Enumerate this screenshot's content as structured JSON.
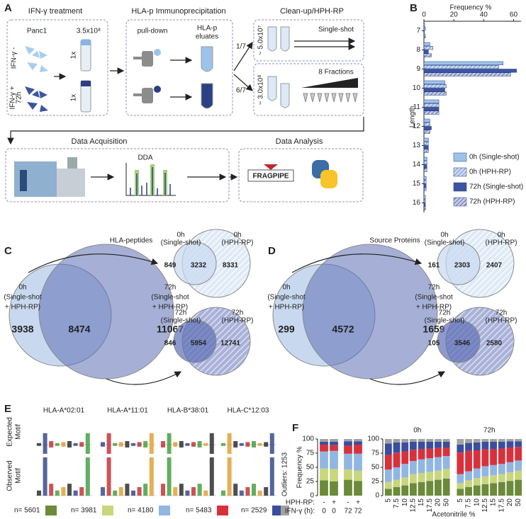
{
  "panel_a": {
    "label": "A",
    "ifn_treatment": "IFN-γ treatment",
    "cell_line": "Panc1",
    "cell_count": "3.5x10⁸",
    "ifn_minus": "IFN-γ -",
    "ifn_plus": "IFN-γ +",
    "ifn_time": "72h",
    "replicate_1": "1x",
    "replicate_2": "1x",
    "ip_title": "HLA-p Immunoprecipitation",
    "pulldown": "pull-down",
    "eluates": [
      "HLA-p",
      "eluates"
    ],
    "split_1": "1/7",
    "split_2": "6/7",
    "cleanup_title": "Clean-up/HPH-RP",
    "amount_1": "~ 5.0x10⁷",
    "amount_2": "~ 3.0x10⁸",
    "single_shot": "Single-shot",
    "fractions": "8 Fractions",
    "acq_title": "Data Acquisition",
    "dda": "DDA",
    "analysis_title": "Data Analysis",
    "fragpipe": "FRAGPIPE"
  },
  "panel_c": {
    "label": "C",
    "title": "HLA-peptides",
    "big": {
      "left_label": [
        "0h",
        "(Single-shot",
        "+ HPH-RP)"
      ],
      "right_label": [
        "72h",
        "(Single-shot",
        "+ HPH-RP)"
      ],
      "left": 3938,
      "both": 8474,
      "right": 11067
    },
    "small": [
      {
        "left_label": [
          "0h",
          "(Single-shot)"
        ],
        "right_label": [
          "0h",
          "(HPH-RP)"
        ],
        "left": 849,
        "both": 3232,
        "right": 8331
      },
      {
        "left_label": [
          "72h",
          "(Single-shot)"
        ],
        "right_label": [
          "72h",
          "(HPH-RP)"
        ],
        "left": 846,
        "both": 5954,
        "right": 12741
      }
    ]
  },
  "panel_d": {
    "label": "D",
    "title": "Source Proteins",
    "big": {
      "left_label": [
        "0h",
        "(Single-shot",
        "+ HPH-RP)"
      ],
      "right_label": [
        "72h",
        "(Single-shot",
        "+ HPH-RP)"
      ],
      "left": 299,
      "both": 4572,
      "right": 1659
    },
    "small": [
      {
        "left_label": [
          "0h",
          "(Single-shot)"
        ],
        "right_label": [
          "0h",
          "(HPH-RP)"
        ],
        "left": 161,
        "both": 2303,
        "right": 2407
      },
      {
        "left_label": [
          "72h",
          "(Single-shot)"
        ],
        "right_label": [
          "72h",
          "(HPH-RP)"
        ],
        "left": 105,
        "both": 3546,
        "right": 2580
      }
    ]
  },
  "panel_e": {
    "label": "E",
    "alleles": [
      "HLA-A*02:01",
      "HLA-A*11:01",
      "HLA-B*38:01",
      "HLA-C*12:03"
    ],
    "expected": [
      "Expected",
      "Motif"
    ],
    "observed": [
      "Observed",
      "Motif"
    ],
    "counts": [
      "n= 5601",
      "n= 3981",
      "n= 4180",
      "n= 5483",
      "n= 2529"
    ],
    "count_colors": [
      "#6b8a3a",
      "#c9d67c",
      "#92b6e2",
      "#d9313c",
      "#3b4e9c"
    ],
    "outliers": "Outliers: 1253",
    "outlier_color": "#a3a3a3"
  },
  "chart_data": [
    {
      "type": "hbar",
      "panel_label": "B",
      "xlabel": "Frequency %",
      "ylabel": "Length",
      "categories": [
        "7",
        "8",
        "9",
        "10",
        "11",
        "12",
        "13",
        "14",
        "15",
        "16"
      ],
      "xlim": [
        0,
        65
      ],
      "xticks": [
        0,
        20,
        40,
        60
      ],
      "series": [
        {
          "name": "0h (Single-shot)",
          "color": "#9dc3ea",
          "hatched": false,
          "values": [
            0.5,
            4,
            53,
            14,
            10,
            4,
            3,
            2,
            1.5,
            1
          ]
        },
        {
          "name": "0h (HPH-RP)",
          "color": "#5b84c4",
          "hatched": true,
          "values": [
            1,
            6,
            50,
            15,
            10,
            4,
            3,
            2,
            1.5,
            1
          ]
        },
        {
          "name": "72h (Single-shot)",
          "color": "#3d55a0",
          "hatched": false,
          "values": [
            0.3,
            3,
            62,
            14,
            10,
            5,
            3,
            2,
            1.5,
            1
          ]
        },
        {
          "name": "72h (HPH-RP)",
          "color": "#3d55a0",
          "hatched": true,
          "values": [
            1,
            5,
            58,
            15,
            10,
            4,
            3,
            2,
            1.5,
            1
          ]
        }
      ]
    },
    {
      "type": "stacked_bar",
      "panel_label": "F",
      "ylabel": "Frequency %",
      "ylim": [
        0,
        100
      ],
      "yticks": [
        0,
        25,
        50,
        75,
        100
      ],
      "row_labels": [
        "HPH-RP:",
        "IFN-γ (h):"
      ],
      "hph_rp": [
        "-",
        "+",
        "-",
        "+"
      ],
      "ifn": [
        "0",
        "0",
        "72",
        "72"
      ],
      "series": [
        {
          "color": "#6b8a3a",
          "values": [
            27,
            25,
            28,
            26
          ]
        },
        {
          "color": "#c9d67c",
          "values": [
            21,
            22,
            18,
            18
          ]
        },
        {
          "color": "#92b6e2",
          "values": [
            30,
            32,
            28,
            30
          ]
        },
        {
          "color": "#d9313c",
          "values": [
            12,
            10,
            14,
            16
          ]
        },
        {
          "color": "#3b4e9c",
          "values": [
            5,
            6,
            8,
            6
          ]
        },
        {
          "color": "#a3a3a3",
          "values": [
            5,
            5,
            4,
            4
          ]
        }
      ]
    },
    {
      "type": "stacked_bar",
      "xlabel": "Acetonitrile %",
      "ylim": [
        0,
        100
      ],
      "yticks": [
        0,
        25,
        50,
        75,
        100
      ],
      "groups": [
        "0h",
        "72h"
      ],
      "categories": [
        "5",
        "7.5",
        "10",
        "12.5",
        "15",
        "17.5",
        "20",
        "50",
        "5",
        "7.5",
        "10",
        "12.5",
        "15",
        "17.5",
        "20",
        "50"
      ],
      "series": [
        {
          "color": "#6b8a3a",
          "values": [
            12,
            15,
            18,
            22,
            24,
            26,
            28,
            30,
            12,
            15,
            18,
            20,
            22,
            24,
            26,
            28
          ]
        },
        {
          "color": "#c9d67c",
          "values": [
            12,
            13,
            14,
            16,
            16,
            16,
            16,
            17,
            10,
            12,
            13,
            14,
            14,
            14,
            15,
            16
          ]
        },
        {
          "color": "#92b6e2",
          "values": [
            22,
            22,
            24,
            23,
            24,
            24,
            24,
            23,
            16,
            16,
            17,
            18,
            18,
            18,
            18,
            18
          ]
        },
        {
          "color": "#d9313c",
          "values": [
            26,
            26,
            22,
            20,
            18,
            17,
            16,
            15,
            38,
            36,
            32,
            30,
            28,
            27,
            26,
            24
          ]
        },
        {
          "color": "#3b4e9c",
          "values": [
            20,
            18,
            16,
            14,
            13,
            12,
            11,
            10,
            14,
            14,
            14,
            13,
            13,
            12,
            11,
            10
          ]
        },
        {
          "color": "#a3a3a3",
          "values": [
            8,
            6,
            6,
            5,
            5,
            5,
            5,
            5,
            10,
            7,
            6,
            5,
            5,
            5,
            4,
            4
          ]
        }
      ]
    }
  ]
}
